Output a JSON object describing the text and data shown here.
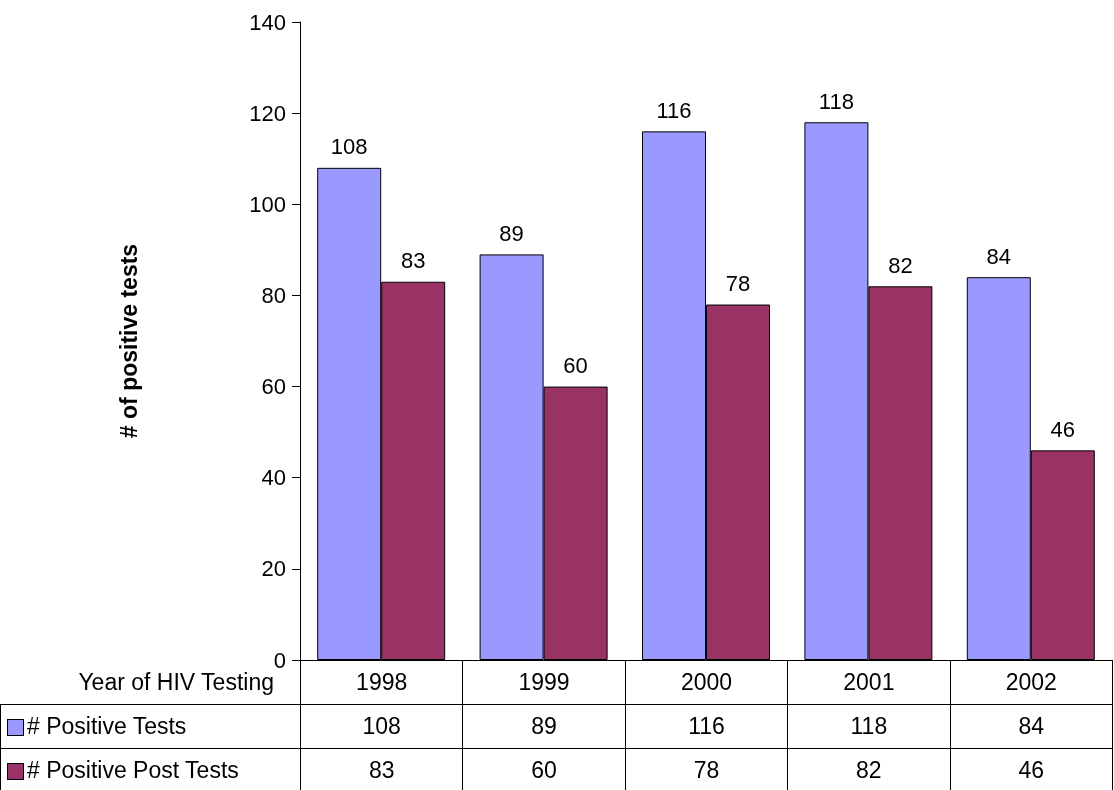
{
  "chart_data": {
    "type": "bar",
    "xlabel": "Year of HIV Testing",
    "ylabel": "# of positive tests",
    "categories": [
      "1998",
      "1999",
      "2000",
      "2001",
      "2002"
    ],
    "series": [
      {
        "name": "# Positive Tests",
        "color": "#9999ff",
        "values": [
          108,
          89,
          116,
          118,
          84
        ]
      },
      {
        "name": "# Positive Post Tests",
        "color": "#993366",
        "values": [
          83,
          60,
          78,
          82,
          46
        ]
      }
    ],
    "ylim": [
      0,
      140
    ],
    "yticks": [
      0,
      20,
      40,
      60,
      80,
      100,
      120,
      140
    ],
    "annotations": [
      "108",
      "89",
      "116",
      "118",
      "84",
      "83",
      "60",
      "78",
      "82",
      "46"
    ],
    "data_labels": true,
    "legend": "bottom"
  }
}
